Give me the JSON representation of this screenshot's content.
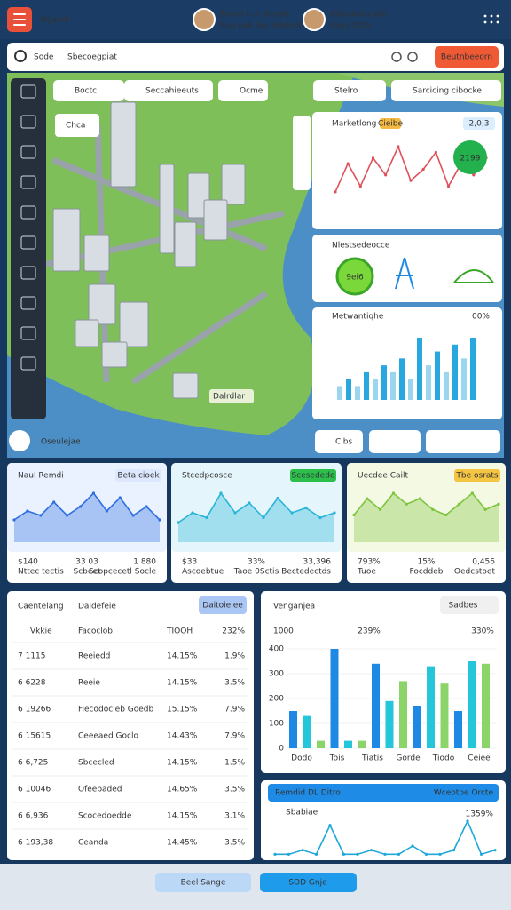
{
  "header": {
    "title": "Ngandi",
    "users": [
      {
        "name": "Bamd l—l- Decde",
        "sub": "Bag bab Sacidddisdt"
      },
      {
        "name": "Eedcabetcabe",
        "sub": "Sbay SOD"
      }
    ]
  },
  "search": {
    "label": "Sode",
    "placeholder": "Sbecoegpiat",
    "button": "Beutnbeeorn"
  },
  "map": {
    "filters": [
      "Boctc",
      "Seccahieeuts",
      "Ocme",
      "Stelro",
      "Sarcicing cibocke"
    ],
    "tag": "Chca",
    "label": "Dalrdlar",
    "place": "Oseulejae",
    "chip": "Clbs"
  },
  "panels": [
    {
      "title": "Marketlong",
      "badge": "Cieibe",
      "value": "2,0,3",
      "kpi": "2199",
      "values": [
        3,
        8,
        4,
        9,
        6,
        11,
        5,
        7,
        10,
        4,
        8,
        6,
        9
      ]
    },
    {
      "title": "Nlestsedeocce",
      "kpi": "9ei6"
    },
    {
      "title": "Metwantiqhe",
      "value": "00%",
      "values": [
        2,
        3,
        2,
        4,
        3,
        5,
        4,
        6,
        3,
        9,
        5,
        7,
        4,
        8,
        6,
        9
      ]
    }
  ],
  "cards": [
    {
      "title": "Naul Remdi",
      "badge": "Beta cioek",
      "values": [
        5,
        7,
        6,
        9,
        6,
        8,
        11,
        7,
        10,
        6,
        8,
        5
      ],
      "stats": [
        {
          "value": "$140",
          "label": "Nttec tectis"
        },
        {
          "value": "33 03",
          "label": "Scbeet"
        },
        {
          "value": "1 880",
          "label": "Scopcecetl Socle"
        }
      ]
    },
    {
      "title": "Stcedpcosce",
      "badge": "Scesedede",
      "values": [
        4,
        6,
        5,
        10,
        6,
        8,
        5,
        9,
        6,
        7,
        5,
        6
      ],
      "stats": [
        {
          "value": "$33",
          "label": "Ascoebtue"
        },
        {
          "value": "33%",
          "label": "Taoe 0Sctis"
        },
        {
          "value": "33,396",
          "label": "Bectedectds"
        }
      ]
    },
    {
      "title": "Uecdee Cailt",
      "badge": "Tbe osrats",
      "values": [
        5,
        8,
        6,
        9,
        7,
        8,
        6,
        5,
        7,
        9,
        6,
        7
      ],
      "stats": [
        {
          "value": "793%",
          "label": "Tuoe"
        },
        {
          "value": "15%",
          "label": "Focddeb"
        },
        {
          "value": "0,456",
          "label": "Oedcstoet"
        }
      ]
    }
  ],
  "table": {
    "title": "Caentelang",
    "subtitle": "Daidefeie",
    "button": "Daitoieiee",
    "header": [
      "Vkkie",
      "Facoclob",
      "TIOOH",
      "232%"
    ],
    "rows": [
      [
        "7 1115",
        "Reeiedd",
        "14.15%",
        "1.9%"
      ],
      [
        "6 6228",
        "Reeie",
        "14.15%",
        "3.5%"
      ],
      [
        "6 19266",
        "Fiecodocleb Goedb",
        "15.15%",
        "7.9%"
      ],
      [
        "6 15615",
        "Ceeeaed Goclo",
        "14.43%",
        "7.9%"
      ],
      [
        "6 6,725",
        "Sbcecled",
        "14.15%",
        "1.5%"
      ],
      [
        "6 10046",
        "Ofeebaded",
        "14.65%",
        "3.5%"
      ],
      [
        "6 6,936",
        "Scocedoedde",
        "14.15%",
        "3.1%"
      ],
      [
        "6 193,38",
        "Ceanda",
        "14.45%",
        "3.5%"
      ]
    ]
  },
  "chart": {
    "title": "Venganjea",
    "button": "Sadbes",
    "axis": "1000",
    "notes": [
      "239%",
      "330%"
    ],
    "ylim": [
      0,
      400
    ],
    "yticks": [
      0,
      100,
      200,
      300,
      400
    ],
    "categories": [
      "Dodo",
      "Tois",
      "Tiatis",
      "Gorde",
      "Tiodo",
      "Ceiee"
    ],
    "values": [
      150,
      130,
      30,
      400,
      30,
      30,
      340,
      190,
      270,
      170,
      330,
      260,
      150,
      350,
      340
    ]
  },
  "trend": {
    "title": "Remdid DL Ditro",
    "button": "Wceotbe Orcte",
    "label": "Sbabiae",
    "value": "1359%",
    "values": [
      1,
      1,
      2,
      1,
      8,
      1,
      1,
      2,
      1,
      1,
      3,
      1,
      1,
      2,
      9,
      1,
      2
    ]
  },
  "footer": {
    "buttons": [
      "Beel Sange",
      "SOD Gnje"
    ]
  }
}
